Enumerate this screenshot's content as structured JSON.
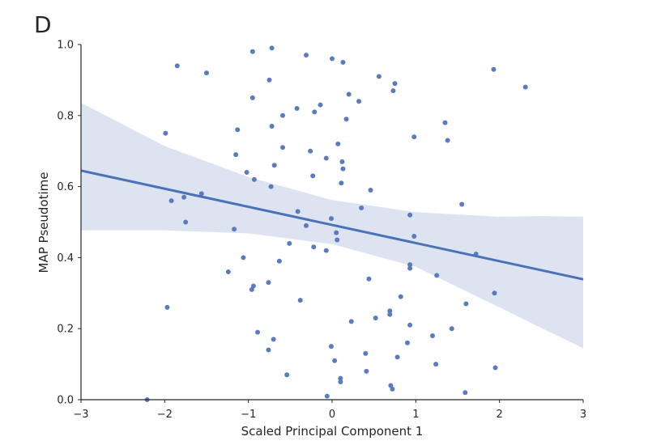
{
  "panel_label": "D",
  "chart_data": {
    "type": "scatter",
    "xlabel": "Scaled Principal Component 1",
    "ylabel": "MAP Pseudotime",
    "xlim": [
      -3,
      3
    ],
    "ylim": [
      0,
      1
    ],
    "xticks": [
      -3,
      -2,
      -1,
      0,
      1,
      2,
      3
    ],
    "xtick_labels": [
      "−3",
      "−2",
      "−1",
      "0",
      "1",
      "2",
      "3"
    ],
    "yticks": [
      0,
      0.2,
      0.4,
      0.6,
      0.8,
      1.0
    ],
    "ytick_labels": [
      "0.0",
      "0.2",
      "0.4",
      "0.6",
      "0.8",
      "1.0"
    ],
    "grid": false,
    "colors": {
      "points": "#5a7cbf",
      "regression_line": "#4a72b8",
      "confidence_band": "#dde3f1",
      "axes": "#262626"
    },
    "points": [
      [
        -0.72,
        0.99
      ],
      [
        -0.95,
        0.98
      ],
      [
        -0.31,
        0.97
      ],
      [
        0.0,
        0.96
      ],
      [
        0.13,
        0.95
      ],
      [
        -1.85,
        0.94
      ],
      [
        1.93,
        0.93
      ],
      [
        -1.5,
        0.92
      ],
      [
        0.56,
        0.91
      ],
      [
        -0.75,
        0.9
      ],
      [
        0.75,
        0.89
      ],
      [
        2.31,
        0.88
      ],
      [
        0.73,
        0.87
      ],
      [
        0.2,
        0.86
      ],
      [
        -0.95,
        0.85
      ],
      [
        0.32,
        0.84
      ],
      [
        -0.14,
        0.83
      ],
      [
        -0.42,
        0.82
      ],
      [
        -0.21,
        0.81
      ],
      [
        -0.59,
        0.8
      ],
      [
        0.17,
        0.79
      ],
      [
        1.35,
        0.78
      ],
      [
        -0.72,
        0.77
      ],
      [
        -1.13,
        0.76
      ],
      [
        -1.99,
        0.75
      ],
      [
        0.98,
        0.74
      ],
      [
        1.38,
        0.73
      ],
      [
        0.07,
        0.72
      ],
      [
        -0.59,
        0.71
      ],
      [
        -0.26,
        0.7
      ],
      [
        -1.15,
        0.69
      ],
      [
        -0.07,
        0.68
      ],
      [
        0.12,
        0.67
      ],
      [
        -0.69,
        0.66
      ],
      [
        0.13,
        0.65
      ],
      [
        -1.02,
        0.64
      ],
      [
        -0.23,
        0.63
      ],
      [
        -0.93,
        0.62
      ],
      [
        0.11,
        0.61
      ],
      [
        -0.73,
        0.6
      ],
      [
        0.46,
        0.59
      ],
      [
        -1.56,
        0.58
      ],
      [
        -1.77,
        0.57
      ],
      [
        -1.92,
        0.56
      ],
      [
        1.55,
        0.55
      ],
      [
        0.35,
        0.54
      ],
      [
        -0.41,
        0.53
      ],
      [
        0.93,
        0.52
      ],
      [
        -0.01,
        0.51
      ],
      [
        -1.75,
        0.5
      ],
      [
        -0.31,
        0.49
      ],
      [
        -1.17,
        0.48
      ],
      [
        0.05,
        0.47
      ],
      [
        0.98,
        0.46
      ],
      [
        0.06,
        0.45
      ],
      [
        -0.51,
        0.44
      ],
      [
        -0.22,
        0.43
      ],
      [
        -0.07,
        0.42
      ],
      [
        1.72,
        0.41
      ],
      [
        -1.06,
        0.4
      ],
      [
        -0.63,
        0.39
      ],
      [
        0.93,
        0.38
      ],
      [
        0.93,
        0.37
      ],
      [
        -1.24,
        0.36
      ],
      [
        1.25,
        0.35
      ],
      [
        0.44,
        0.34
      ],
      [
        -0.76,
        0.33
      ],
      [
        -0.94,
        0.32
      ],
      [
        -0.96,
        0.31
      ],
      [
        1.94,
        0.3
      ],
      [
        0.82,
        0.29
      ],
      [
        -0.38,
        0.28
      ],
      [
        1.6,
        0.27
      ],
      [
        -1.97,
        0.26
      ],
      [
        0.69,
        0.25
      ],
      [
        0.69,
        0.24
      ],
      [
        0.52,
        0.23
      ],
      [
        0.23,
        0.22
      ],
      [
        0.93,
        0.21
      ],
      [
        1.43,
        0.2
      ],
      [
        -0.89,
        0.19
      ],
      [
        1.2,
        0.18
      ],
      [
        -0.7,
        0.17
      ],
      [
        0.9,
        0.16
      ],
      [
        -0.01,
        0.15
      ],
      [
        -0.76,
        0.14
      ],
      [
        0.4,
        0.13
      ],
      [
        0.78,
        0.12
      ],
      [
        0.03,
        0.11
      ],
      [
        1.24,
        0.1
      ],
      [
        1.95,
        0.09
      ],
      [
        0.41,
        0.08
      ],
      [
        -0.54,
        0.07
      ],
      [
        0.1,
        0.06
      ],
      [
        0.1,
        0.05
      ],
      [
        0.7,
        0.04
      ],
      [
        0.72,
        0.03
      ],
      [
        1.59,
        0.02
      ],
      [
        -0.06,
        0.01
      ],
      [
        -2.21,
        0.0
      ]
    ],
    "regression_line": [
      [
        -3,
        0.645
      ],
      [
        3,
        0.339
      ]
    ],
    "confidence_band": {
      "x": [
        -3,
        -2,
        -1,
        0,
        1,
        2,
        2.5,
        3
      ],
      "upper": [
        0.836,
        0.714,
        0.627,
        0.562,
        0.528,
        0.515,
        0.517,
        0.515
      ],
      "lower": [
        0.477,
        0.477,
        0.468,
        0.438,
        0.374,
        0.26,
        0.202,
        0.145
      ]
    }
  }
}
